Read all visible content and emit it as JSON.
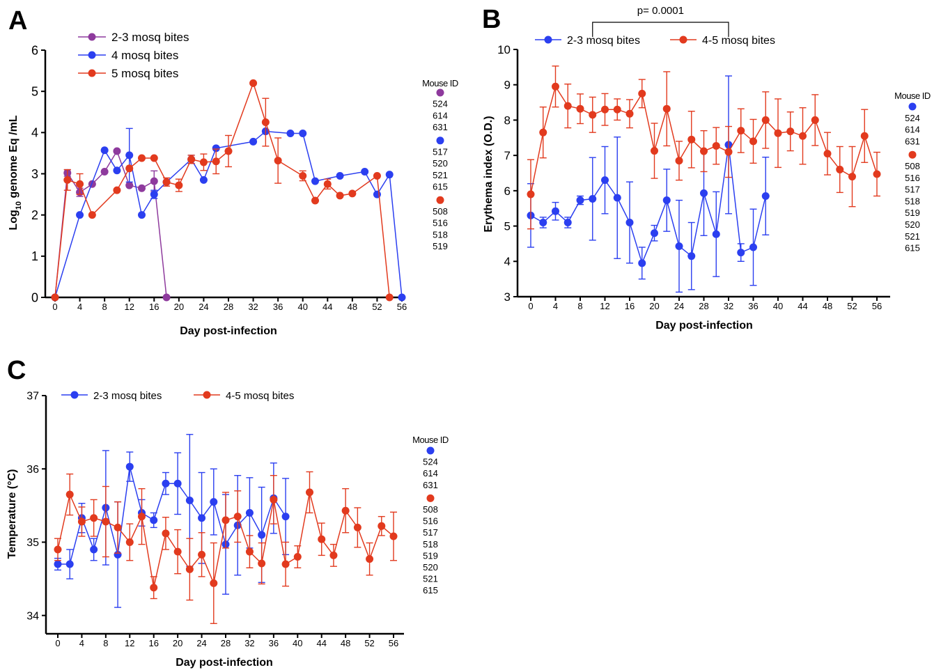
{
  "colors": {
    "purple": "#8e3a9d",
    "blue": "#2b3ff0",
    "red": "#e23a1e",
    "axis": "#000000"
  },
  "chart_data": [
    {
      "panel": "A",
      "type": "line",
      "xlabel": "Day post-infection",
      "ylabel": "Log10 genome Eq /mL",
      "ylabel_main": "Log",
      "ylabel_sub": "10",
      "ylabel_rest": " genome Eq /mL",
      "xlim": [
        0,
        56
      ],
      "ylim": [
        0,
        6
      ],
      "xticks": [
        0,
        4,
        8,
        12,
        16,
        20,
        24,
        28,
        32,
        36,
        40,
        44,
        48,
        52,
        56
      ],
      "yticks": [
        0,
        1,
        2,
        3,
        4,
        5,
        6
      ],
      "legend_position": "top-left",
      "mouse_id_title": "Mouse ID",
      "mouse_id_groups": [
        {
          "color": "purple",
          "ids": [
            "524",
            "614",
            "631"
          ]
        },
        {
          "color": "blue",
          "ids": [
            "517",
            "520",
            "521",
            "615"
          ]
        },
        {
          "color": "red",
          "ids": [
            "508",
            "516",
            "518",
            "519"
          ]
        }
      ],
      "series": [
        {
          "name": "2-3 mosq bites",
          "color": "purple",
          "points": [
            [
              0,
              0,
              0
            ],
            [
              2,
              3.02,
              0.08
            ],
            [
              4,
              2.55,
              0.1
            ],
            [
              6,
              2.75,
              0
            ],
            [
              8,
              3.05,
              0
            ],
            [
              10,
              3.55,
              0
            ],
            [
              12,
              2.72,
              0
            ],
            [
              14,
              2.65,
              0
            ],
            [
              16,
              2.82,
              0.25
            ],
            [
              18,
              0,
              0
            ]
          ]
        },
        {
          "name": "4 mosq bites",
          "color": "blue",
          "points": [
            [
              0,
              0,
              0
            ],
            [
              4,
              2.0,
              0
            ],
            [
              8,
              3.57,
              0
            ],
            [
              10,
              3.08,
              0
            ],
            [
              12,
              3.45,
              0.65
            ],
            [
              14,
              2.0,
              0
            ],
            [
              16,
              2.5,
              0.1
            ],
            [
              18,
              2.8,
              0
            ],
            [
              22,
              3.35,
              0.1
            ],
            [
              24,
              2.85,
              0
            ],
            [
              26,
              3.62,
              0
            ],
            [
              32,
              3.78,
              0
            ],
            [
              34,
              4.03,
              0
            ],
            [
              38,
              3.98,
              0
            ],
            [
              40,
              3.98,
              0
            ],
            [
              42,
              2.82,
              0
            ],
            [
              46,
              2.95,
              0
            ],
            [
              50,
              3.05,
              0
            ],
            [
              52,
              2.5,
              0
            ],
            [
              54,
              2.98,
              0
            ],
            [
              56,
              0,
              0
            ]
          ]
        },
        {
          "name": "5 mosq bites",
          "color": "red",
          "points": [
            [
              0,
              0,
              0
            ],
            [
              2,
              2.85,
              0.25
            ],
            [
              4,
              2.75,
              0.25
            ],
            [
              6,
              2.0,
              0
            ],
            [
              10,
              2.6,
              0
            ],
            [
              12,
              3.13,
              0
            ],
            [
              14,
              3.38,
              0
            ],
            [
              16,
              3.38,
              0
            ],
            [
              18,
              2.8,
              0.1
            ],
            [
              20,
              2.72,
              0.15
            ],
            [
              22,
              3.35,
              0.1
            ],
            [
              24,
              3.28,
              0.2
            ],
            [
              26,
              3.3,
              0.3
            ],
            [
              28,
              3.55,
              0.38
            ],
            [
              32,
              5.2,
              0
            ],
            [
              34,
              4.25,
              0.58
            ],
            [
              36,
              3.32,
              0.55
            ],
            [
              40,
              2.95,
              0.12
            ],
            [
              42,
              2.35,
              0
            ],
            [
              44,
              2.75,
              0.12
            ],
            [
              46,
              2.47,
              0
            ],
            [
              48,
              2.52,
              0
            ],
            [
              52,
              2.95,
              0
            ],
            [
              54,
              0,
              0
            ]
          ]
        }
      ]
    },
    {
      "panel": "B",
      "type": "line",
      "xlabel": "Day post-infection",
      "ylabel": "Erythema index (O.D.)",
      "xlim": [
        0,
        56
      ],
      "ylim": [
        3,
        10
      ],
      "xticks": [
        0,
        4,
        8,
        12,
        16,
        20,
        24,
        28,
        32,
        36,
        40,
        44,
        48,
        52,
        56
      ],
      "yticks": [
        3,
        4,
        5,
        6,
        7,
        8,
        9,
        10
      ],
      "legend_position": "top",
      "annotation": {
        "text": "p= 0.0001",
        "x_from": 10,
        "x_to": 32
      },
      "mouse_id_title": "Mouse ID",
      "mouse_id_groups": [
        {
          "color": "blue",
          "ids": [
            "524",
            "614",
            "631"
          ]
        },
        {
          "color": "red",
          "ids": [
            "508",
            "516",
            "517",
            "518",
            "519",
            "520",
            "521",
            "615"
          ]
        }
      ],
      "series": [
        {
          "name": "2-3 mosq bites",
          "color": "blue",
          "points": [
            [
              0,
              5.3,
              0.9
            ],
            [
              2,
              5.1,
              0.15
            ],
            [
              4,
              5.42,
              0.25
            ],
            [
              6,
              5.1,
              0.15
            ],
            [
              8,
              5.73,
              0.12
            ],
            [
              10,
              5.77,
              1.17
            ],
            [
              12,
              6.3,
              0.95
            ],
            [
              14,
              5.8,
              1.72
            ],
            [
              16,
              5.1,
              1.15
            ],
            [
              18,
              3.95,
              0.45
            ],
            [
              20,
              4.8,
              0.22
            ],
            [
              22,
              5.73,
              0.88
            ],
            [
              24,
              4.43,
              1.3
            ],
            [
              26,
              4.15,
              0.95
            ],
            [
              28,
              5.93,
              1.2
            ],
            [
              30,
              4.77,
              1.2
            ],
            [
              32,
              7.3,
              1.95
            ],
            [
              34,
              4.25,
              0.25
            ],
            [
              36,
              4.4,
              1.08
            ],
            [
              38,
              5.85,
              1.1
            ]
          ]
        },
        {
          "name": "4-5 mosq bites",
          "color": "red",
          "points": [
            [
              0,
              5.9,
              0.98
            ],
            [
              2,
              7.65,
              0.72
            ],
            [
              4,
              8.95,
              0.58
            ],
            [
              6,
              8.4,
              0.62
            ],
            [
              8,
              8.32,
              0.42
            ],
            [
              10,
              8.15,
              0.5
            ],
            [
              12,
              8.3,
              0.45
            ],
            [
              14,
              8.3,
              0.3
            ],
            [
              16,
              8.18,
              0.4
            ],
            [
              18,
              8.75,
              0.4
            ],
            [
              20,
              7.13,
              0.78
            ],
            [
              22,
              8.32,
              1.05
            ],
            [
              24,
              6.85,
              0.55
            ],
            [
              26,
              7.45,
              0.8
            ],
            [
              28,
              7.12,
              0.58
            ],
            [
              30,
              7.27,
              0.52
            ],
            [
              32,
              7.1,
              0.72
            ],
            [
              34,
              7.7,
              0.62
            ],
            [
              36,
              7.4,
              0.62
            ],
            [
              38,
              8.0,
              0.8
            ],
            [
              40,
              7.63,
              0.97
            ],
            [
              42,
              7.68,
              0.55
            ],
            [
              44,
              7.55,
              0.8
            ],
            [
              46,
              8.0,
              0.72
            ],
            [
              48,
              7.05,
              0.6
            ],
            [
              50,
              6.6,
              0.65
            ],
            [
              52,
              6.4,
              0.85
            ],
            [
              54,
              7.55,
              0.75
            ],
            [
              56,
              6.47,
              0.62
            ]
          ]
        }
      ]
    },
    {
      "panel": "C",
      "type": "line",
      "xlabel": "Day post-infection",
      "ylabel": "Temperature (°C)",
      "xlim": [
        -2,
        57
      ],
      "ylim": [
        33.75,
        37
      ],
      "xticks": [
        0,
        4,
        8,
        12,
        16,
        20,
        24,
        28,
        32,
        36,
        40,
        44,
        48,
        52,
        56
      ],
      "yticks": [
        34,
        35,
        36,
        37
      ],
      "legend_position": "top",
      "mouse_id_title": "Mouse ID",
      "mouse_id_groups": [
        {
          "color": "blue",
          "ids": [
            "524",
            "614",
            "631"
          ]
        },
        {
          "color": "red",
          "ids": [
            "508",
            "516",
            "517",
            "518",
            "519",
            "520",
            "521",
            "615"
          ]
        }
      ],
      "series": [
        {
          "name": "2-3 mosq bites",
          "color": "blue",
          "points": [
            [
              0,
              34.7,
              0.08
            ],
            [
              2,
              34.7,
              0.2
            ],
            [
              4,
              35.33,
              0.2
            ],
            [
              6,
              34.9,
              0.15
            ],
            [
              8,
              35.47,
              0.78
            ],
            [
              10,
              34.83,
              0.72
            ],
            [
              12,
              36.03,
              0.2
            ],
            [
              14,
              35.4,
              0.18
            ],
            [
              16,
              35.3,
              0.1
            ],
            [
              18,
              35.8,
              0.15
            ],
            [
              20,
              35.8,
              0.42
            ],
            [
              22,
              35.57,
              0.9
            ],
            [
              24,
              35.33,
              0.62
            ],
            [
              26,
              35.55,
              0.45
            ],
            [
              28,
              34.97,
              0.68
            ],
            [
              30,
              35.23,
              0.68
            ],
            [
              32,
              35.4,
              0.48
            ],
            [
              34,
              35.1,
              0.65
            ],
            [
              36,
              35.6,
              0.48
            ],
            [
              38,
              35.35,
              0.52
            ]
          ]
        },
        {
          "name": "4-5 mosq bites",
          "color": "red",
          "points": [
            [
              0,
              34.9,
              0.15
            ],
            [
              2,
              35.65,
              0.28
            ],
            [
              4,
              35.28,
              0.2
            ],
            [
              6,
              35.33,
              0.25
            ],
            [
              8,
              35.28,
              0.48
            ],
            [
              10,
              35.2,
              0.35
            ],
            [
              12,
              35.0,
              0.25
            ],
            [
              14,
              35.35,
              0.38
            ],
            [
              16,
              34.38,
              0.15
            ],
            [
              18,
              35.12,
              0.22
            ],
            [
              20,
              34.87,
              0.3
            ],
            [
              22,
              34.63,
              0.42
            ],
            [
              24,
              34.83,
              0.3
            ],
            [
              26,
              34.44,
              0.55
            ],
            [
              28,
              35.3,
              0.38
            ],
            [
              30,
              35.35,
              0.35
            ],
            [
              32,
              34.87,
              0.22
            ],
            [
              34,
              34.71,
              0.28
            ],
            [
              36,
              35.58,
              0.33
            ],
            [
              38,
              34.7,
              0.3
            ],
            [
              40,
              34.8,
              0.15
            ],
            [
              42,
              35.68,
              0.28
            ],
            [
              44,
              35.04,
              0.22
            ],
            [
              46,
              34.82,
              0.15
            ],
            [
              48,
              35.43,
              0.3
            ],
            [
              50,
              35.2,
              0.27
            ],
            [
              52,
              34.77,
              0.22
            ],
            [
              54,
              35.22,
              0.13
            ],
            [
              56,
              35.08,
              0.33
            ]
          ]
        }
      ]
    }
  ]
}
